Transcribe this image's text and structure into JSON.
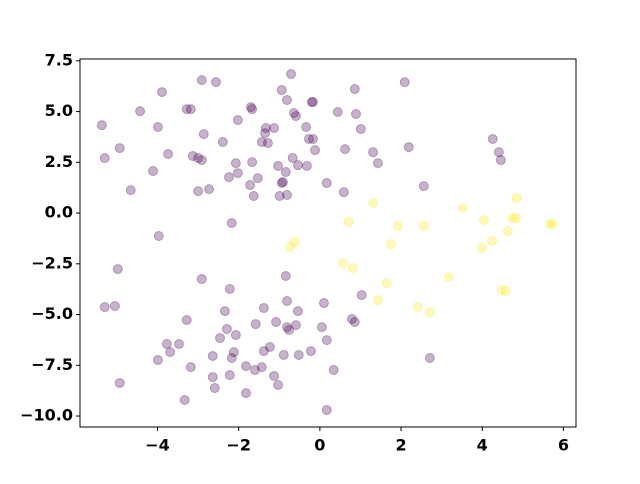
{
  "chart_data": {
    "type": "scatter",
    "xlim": [
      -5.91,
      6.31
    ],
    "ylim": [
      -10.54,
      7.59
    ],
    "xticks": [
      {
        "value": -4,
        "label": "−4"
      },
      {
        "value": -2,
        "label": "−2"
      },
      0,
      2,
      4,
      6
    ],
    "yticks": [
      {
        "value": -10,
        "label": "−10.0"
      },
      {
        "value": -7.5,
        "label": "−7.5"
      },
      {
        "value": -5,
        "label": "−5.0"
      },
      {
        "value": -2.5,
        "label": "−2.5"
      },
      {
        "value": 0,
        "label": "0.0"
      },
      {
        "value": 2.5,
        "label": "2.5"
      },
      {
        "value": 5,
        "label": "5.0"
      },
      {
        "value": 7.5,
        "label": "7.5"
      }
    ],
    "alpha": 0.3,
    "series": [
      {
        "color": "#440154",
        "x": [
          -5.37,
          -5.3,
          -4.93,
          -4.66,
          -4.43,
          -3.89,
          -3.99,
          -3.74,
          -4.11,
          -3.97,
          -3.28,
          -3.18,
          -2.91,
          -2.56,
          -2.86,
          -3.13,
          -3.0,
          -2.91,
          -3.0,
          -2.73,
          -2.39,
          -2.02,
          -1.7,
          -1.67,
          -2.07,
          -2.24,
          -2.02,
          -1.67,
          -1.72,
          -1.63,
          -1.53,
          -1.35,
          -1.43,
          -1.28,
          -1.33,
          -1.13,
          -1.03,
          -0.94,
          -0.81,
          -0.71,
          -0.64,
          -0.59,
          -0.67,
          -0.54,
          -0.34,
          -0.32,
          -0.99,
          -0.91,
          -0.94,
          -0.84,
          -0.81,
          -0.27,
          -0.17,
          -0.2,
          -0.17,
          -0.12,
          0.17,
          0.44,
          0.86,
          0.89,
          1.01,
          0.59,
          0.62,
          1.31,
          1.43,
          2.09,
          2.19,
          2.56,
          4.26,
          4.41,
          4.46,
          -2.17,
          -4.98,
          -5.3,
          -5.05,
          -4.93,
          -3.99,
          -3.77,
          -3.69,
          -3.47,
          -3.28,
          -3.18,
          -3.33,
          -2.91,
          -2.64,
          -2.64,
          -2.59,
          -2.46,
          -2.34,
          -2.29,
          -2.22,
          -2.17,
          -2.12,
          -2.07,
          -2.22,
          -1.82,
          -1.82,
          -1.6,
          -1.58,
          -1.43,
          -1.38,
          -1.38,
          -1.23,
          -1.13,
          -1.03,
          -1.08,
          -0.89,
          -0.81,
          -0.76,
          -0.81,
          -0.84,
          -0.54,
          -0.59,
          -0.52,
          -0.22,
          0.05,
          0.1,
          0.17,
          0.17,
          0.34,
          0.79,
          0.86,
          1.03,
          2.71
        ],
        "y": [
          4.33,
          2.71,
          3.2,
          1.13,
          5.02,
          5.96,
          4.24,
          2.91,
          2.07,
          -1.13,
          5.12,
          5.12,
          6.55,
          6.45,
          3.89,
          2.81,
          2.71,
          2.61,
          1.08,
          1.18,
          3.5,
          4.58,
          5.22,
          5.12,
          2.46,
          1.77,
          1.97,
          2.51,
          1.38,
          0.84,
          1.72,
          3.94,
          3.5,
          3.45,
          4.19,
          4.19,
          2.32,
          6.06,
          5.57,
          6.85,
          4.93,
          4.78,
          2.71,
          2.36,
          4.24,
          2.32,
          0.84,
          1.53,
          1.48,
          2.02,
          0.89,
          3.65,
          3.65,
          5.47,
          5.47,
          3.1,
          1.48,
          4.98,
          6.11,
          4.88,
          4.14,
          1.03,
          3.15,
          3.0,
          2.46,
          6.45,
          3.25,
          1.33,
          3.65,
          3.0,
          2.61,
          -0.49,
          -2.76,
          -4.63,
          -4.58,
          -8.37,
          -7.24,
          -6.45,
          -6.85,
          -6.45,
          -5.27,
          -7.59,
          -9.21,
          -3.25,
          -7.04,
          -8.08,
          -8.62,
          -6.16,
          -4.83,
          -5.71,
          -3.74,
          -7.14,
          -6.85,
          -6.01,
          -7.98,
          -7.54,
          -8.87,
          -7.73,
          -5.47,
          -7.59,
          -4.68,
          -6.8,
          -6.6,
          -8.03,
          -8.47,
          -5.37,
          -6.99,
          -5.62,
          -5.76,
          -4.33,
          -3.1,
          -4.83,
          -5.52,
          -6.99,
          -6.8,
          -5.62,
          -4.43,
          -6.26,
          -9.7,
          -7.73,
          -5.22,
          -5.37,
          -4.04,
          -7.14
        ]
      },
      {
        "color": "#fde725",
        "x": [
          -0.74,
          -0.62,
          0.71,
          0.57,
          0.81,
          1.31,
          1.65,
          1.43,
          1.75,
          1.92,
          2.41,
          2.56,
          2.71,
          3.18,
          3.52,
          4.04,
          3.99,
          4.24,
          4.48,
          4.58,
          4.63,
          4.75,
          4.83,
          4.85,
          5.67,
          5.74
        ],
        "y": [
          -1.67,
          -1.43,
          -0.44,
          -2.46,
          -2.71,
          0.49,
          -3.45,
          -4.29,
          -1.53,
          -0.64,
          -4.63,
          -0.64,
          -4.88,
          -3.15,
          0.25,
          -0.34,
          -1.72,
          -1.38,
          -3.79,
          -3.84,
          -0.89,
          -0.25,
          -0.25,
          0.74,
          -0.54,
          -0.54
        ]
      }
    ]
  }
}
